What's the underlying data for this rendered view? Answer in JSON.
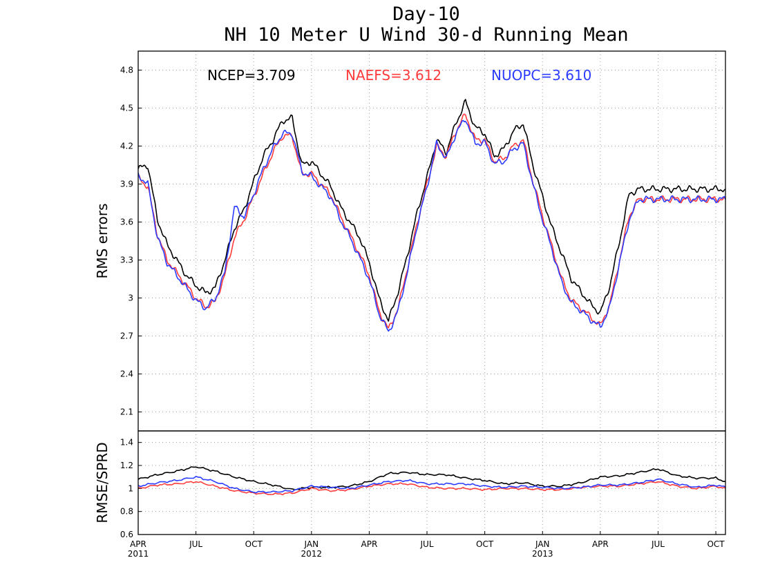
{
  "titles": [
    "Day-10",
    "NH 10 Meter U Wind 30-d Running Mean"
  ],
  "chart_data": [
    {
      "type": "line",
      "panel": "top",
      "ylabel": "RMS errors",
      "ylim": [
        1.95,
        4.95
      ],
      "yticks": [
        2.1,
        2.4,
        2.7,
        3,
        3.3,
        3.6,
        3.9,
        4.2,
        4.5,
        4.8
      ],
      "ytick_labels": [
        "2.1",
        "2.4",
        "2.7",
        "3",
        "3.3",
        "3.6",
        "3.9",
        "4.2",
        "4.5",
        "4.8"
      ],
      "grid": true,
      "x_note": "months since Apr 2011",
      "xlim": [
        0,
        30.5
      ],
      "legend": [
        {
          "label": "NCEP=3.709",
          "color": "#000000"
        },
        {
          "label": "NAEFS=3.612",
          "color": "#ff3b3b"
        },
        {
          "label": "NUOPC=3.610",
          "color": "#2b3bff"
        }
      ],
      "x": [
        0,
        0.5,
        1,
        1.5,
        2,
        2.5,
        3,
        3.5,
        4,
        4.5,
        5,
        5.5,
        6,
        6.5,
        7,
        7.5,
        8,
        8.5,
        9,
        9.5,
        10,
        10.5,
        11,
        11.5,
        12,
        12.5,
        13,
        13.5,
        14,
        14.5,
        15,
        15.5,
        16,
        16.5,
        17,
        17.5,
        18,
        18.5,
        19,
        19.5,
        20,
        20.5,
        21,
        21.5,
        22,
        22.5,
        23,
        23.5,
        24,
        24.5,
        25,
        25.5,
        26,
        26.5,
        27,
        27.5,
        28,
        28.5,
        29,
        29.5,
        30,
        30.5
      ],
      "series": [
        {
          "name": "NCEP",
          "color": "#000000",
          "values": [
            4.02,
            4.05,
            3.62,
            3.42,
            3.3,
            3.18,
            3.1,
            3.04,
            3.08,
            3.3,
            3.55,
            3.7,
            3.92,
            4.12,
            4.25,
            4.4,
            4.42,
            4.05,
            4.08,
            3.98,
            3.88,
            3.72,
            3.6,
            3.48,
            3.28,
            3.0,
            2.82,
            3.05,
            3.35,
            3.68,
            3.95,
            4.25,
            4.15,
            4.38,
            4.55,
            4.35,
            4.3,
            4.12,
            4.18,
            4.32,
            4.38,
            4.05,
            3.8,
            3.55,
            3.35,
            3.15,
            3.05,
            2.95,
            2.88,
            3.1,
            3.45,
            3.82,
            3.86,
            3.86,
            3.86,
            3.86,
            3.86,
            3.86,
            3.86,
            3.86,
            3.86,
            3.86
          ]
        },
        {
          "name": "NAEFS",
          "color": "#ff3b3b",
          "values": [
            3.95,
            3.88,
            3.5,
            3.3,
            3.2,
            3.1,
            3.0,
            2.93,
            2.97,
            3.18,
            3.48,
            3.62,
            3.8,
            3.98,
            4.15,
            4.28,
            4.28,
            3.98,
            3.98,
            3.9,
            3.82,
            3.65,
            3.5,
            3.35,
            3.18,
            2.9,
            2.75,
            2.92,
            3.25,
            3.6,
            3.9,
            4.2,
            4.12,
            4.32,
            4.45,
            4.25,
            4.25,
            4.08,
            4.1,
            4.2,
            4.25,
            3.92,
            3.65,
            3.4,
            3.15,
            2.98,
            2.92,
            2.85,
            2.78,
            2.95,
            3.3,
            3.65,
            3.78,
            3.78,
            3.78,
            3.78,
            3.78,
            3.78,
            3.78,
            3.78,
            3.78,
            3.78
          ]
        },
        {
          "name": "NUOPC",
          "color": "#2b3bff",
          "values": [
            3.97,
            3.9,
            3.48,
            3.28,
            3.18,
            3.08,
            2.98,
            2.92,
            2.99,
            3.2,
            3.72,
            3.64,
            3.82,
            4.02,
            4.18,
            4.3,
            4.3,
            4.0,
            3.96,
            3.88,
            3.8,
            3.62,
            3.48,
            3.32,
            3.15,
            2.88,
            2.73,
            2.9,
            3.22,
            3.58,
            3.88,
            4.22,
            4.1,
            4.3,
            4.42,
            4.22,
            4.23,
            4.06,
            4.08,
            4.18,
            4.22,
            3.9,
            3.62,
            3.38,
            3.12,
            2.96,
            2.9,
            2.83,
            2.77,
            2.93,
            3.28,
            3.62,
            3.78,
            3.78,
            3.78,
            3.78,
            3.78,
            3.78,
            3.78,
            3.78,
            3.78,
            3.78
          ]
        }
      ]
    },
    {
      "type": "line",
      "panel": "bottom",
      "ylabel": "RMSE/SPRD",
      "ylim": [
        0.6,
        1.5
      ],
      "yticks": [
        0.6,
        0.8,
        1,
        1.2,
        1.4
      ],
      "ytick_labels": [
        "0.6",
        "0.8",
        "1",
        "1.2",
        "1.4"
      ],
      "grid": true,
      "xlim": [
        0,
        30.5
      ],
      "xtick_positions": [
        0,
        3,
        6,
        9,
        12,
        15,
        18,
        21,
        24,
        27,
        30
      ],
      "xtick_labels": [
        "APR",
        "JUL",
        "OCT",
        "JAN",
        "APR",
        "JUL",
        "OCT",
        "JAN",
        "APR",
        "JUL",
        "OCT"
      ],
      "year_labels": [
        {
          "pos": 0,
          "text": "2011"
        },
        {
          "pos": 9,
          "text": "2012"
        },
        {
          "pos": 21,
          "text": "2013"
        }
      ],
      "x": [
        0,
        1,
        2,
        3,
        4,
        5,
        6,
        7,
        8,
        9,
        10,
        11,
        12,
        13,
        14,
        15,
        16,
        17,
        18,
        19,
        20,
        21,
        22,
        23,
        24,
        25,
        26,
        27,
        28,
        29,
        30,
        30.5
      ],
      "series": [
        {
          "name": "NCEP",
          "color": "#000000",
          "values": [
            1.08,
            1.12,
            1.15,
            1.19,
            1.15,
            1.1,
            1.06,
            1.03,
            0.99,
            1.01,
            1.01,
            1.02,
            1.06,
            1.13,
            1.14,
            1.12,
            1.12,
            1.09,
            1.07,
            1.04,
            1.05,
            1.02,
            1.02,
            1.05,
            1.1,
            1.11,
            1.14,
            1.17,
            1.11,
            1.09,
            1.09,
            1.06
          ]
        },
        {
          "name": "NAEFS",
          "color": "#ff3b3b",
          "values": [
            1.0,
            1.03,
            1.04,
            1.06,
            1.02,
            0.98,
            0.96,
            0.95,
            0.96,
            1.0,
            0.98,
            0.99,
            1.02,
            1.04,
            1.04,
            1.01,
            1.0,
            1.0,
            0.99,
            1.0,
            1.0,
            0.99,
            0.99,
            1.01,
            1.02,
            1.02,
            1.04,
            1.06,
            1.02,
            1.0,
            1.02,
            1.0
          ]
        },
        {
          "name": "NUOPC",
          "color": "#2b3bff",
          "values": [
            1.02,
            1.05,
            1.07,
            1.1,
            1.06,
            1.0,
            0.97,
            0.97,
            0.98,
            1.02,
            1.01,
            1.0,
            1.03,
            1.06,
            1.07,
            1.04,
            1.04,
            1.04,
            1.02,
            1.01,
            1.02,
            1.01,
            1.0,
            1.01,
            1.03,
            1.03,
            1.05,
            1.08,
            1.04,
            1.01,
            1.03,
            1.01
          ]
        }
      ]
    }
  ]
}
